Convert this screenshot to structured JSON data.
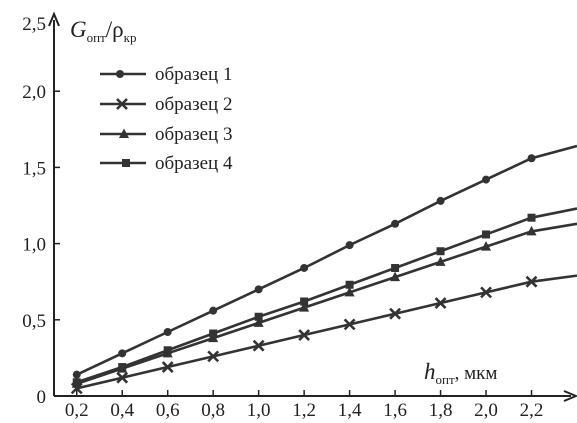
{
  "chart_data": {
    "type": "line",
    "ylabel": {
      "main": "G",
      "sub": "опт",
      "sep": "/",
      "rho": "ρ",
      "rho_sub": "кр"
    },
    "xlabel": {
      "main": "h",
      "sub": "опт",
      "unit": ", мкм"
    },
    "x_ticks": [
      "0,2",
      "0,4",
      "0,6",
      "0,8",
      "1,0",
      "1,2",
      "1,4",
      "1,6",
      "1,8",
      "2,0",
      "2,2"
    ],
    "y_ticks": [
      "0",
      "0,5",
      "1,0",
      "1,5",
      "2,0",
      "2,5"
    ],
    "xlim": [
      0.1,
      2.4
    ],
    "ylim": [
      0,
      2.5
    ],
    "legend_position": "top-left",
    "series": [
      {
        "name": "образец 1",
        "marker": "circle",
        "color": "#333333",
        "x": [
          0.2,
          0.4,
          0.6,
          0.8,
          1.0,
          1.2,
          1.4,
          1.6,
          1.8,
          2.0,
          2.2
        ],
        "values": [
          0.14,
          0.28,
          0.42,
          0.56,
          0.7,
          0.84,
          0.99,
          1.13,
          1.28,
          1.42,
          1.56
        ],
        "line_end": [
          2.4,
          1.64
        ]
      },
      {
        "name": "образец 2",
        "marker": "cross",
        "color": "#333333",
        "x": [
          0.2,
          0.4,
          0.6,
          0.8,
          1.0,
          1.2,
          1.4,
          1.6,
          1.8,
          2.0,
          2.2
        ],
        "values": [
          0.05,
          0.12,
          0.19,
          0.26,
          0.33,
          0.4,
          0.47,
          0.54,
          0.61,
          0.68,
          0.75
        ],
        "line_end": [
          2.4,
          0.79
        ]
      },
      {
        "name": "образец 3",
        "marker": "triangle",
        "color": "#333333",
        "x": [
          0.2,
          0.4,
          0.6,
          0.8,
          1.0,
          1.2,
          1.4,
          1.6,
          1.8,
          2.0,
          2.2
        ],
        "values": [
          0.08,
          0.18,
          0.28,
          0.38,
          0.48,
          0.58,
          0.68,
          0.78,
          0.88,
          0.98,
          1.08
        ],
        "line_end": [
          2.4,
          1.13
        ]
      },
      {
        "name": "образец 4",
        "marker": "square",
        "color": "#333333",
        "x": [
          0.2,
          0.4,
          0.6,
          0.8,
          1.0,
          1.2,
          1.4,
          1.6,
          1.8,
          2.0,
          2.2
        ],
        "values": [
          0.09,
          0.19,
          0.3,
          0.41,
          0.52,
          0.62,
          0.73,
          0.84,
          0.95,
          1.06,
          1.17
        ],
        "line_end": [
          2.4,
          1.23
        ]
      }
    ]
  }
}
